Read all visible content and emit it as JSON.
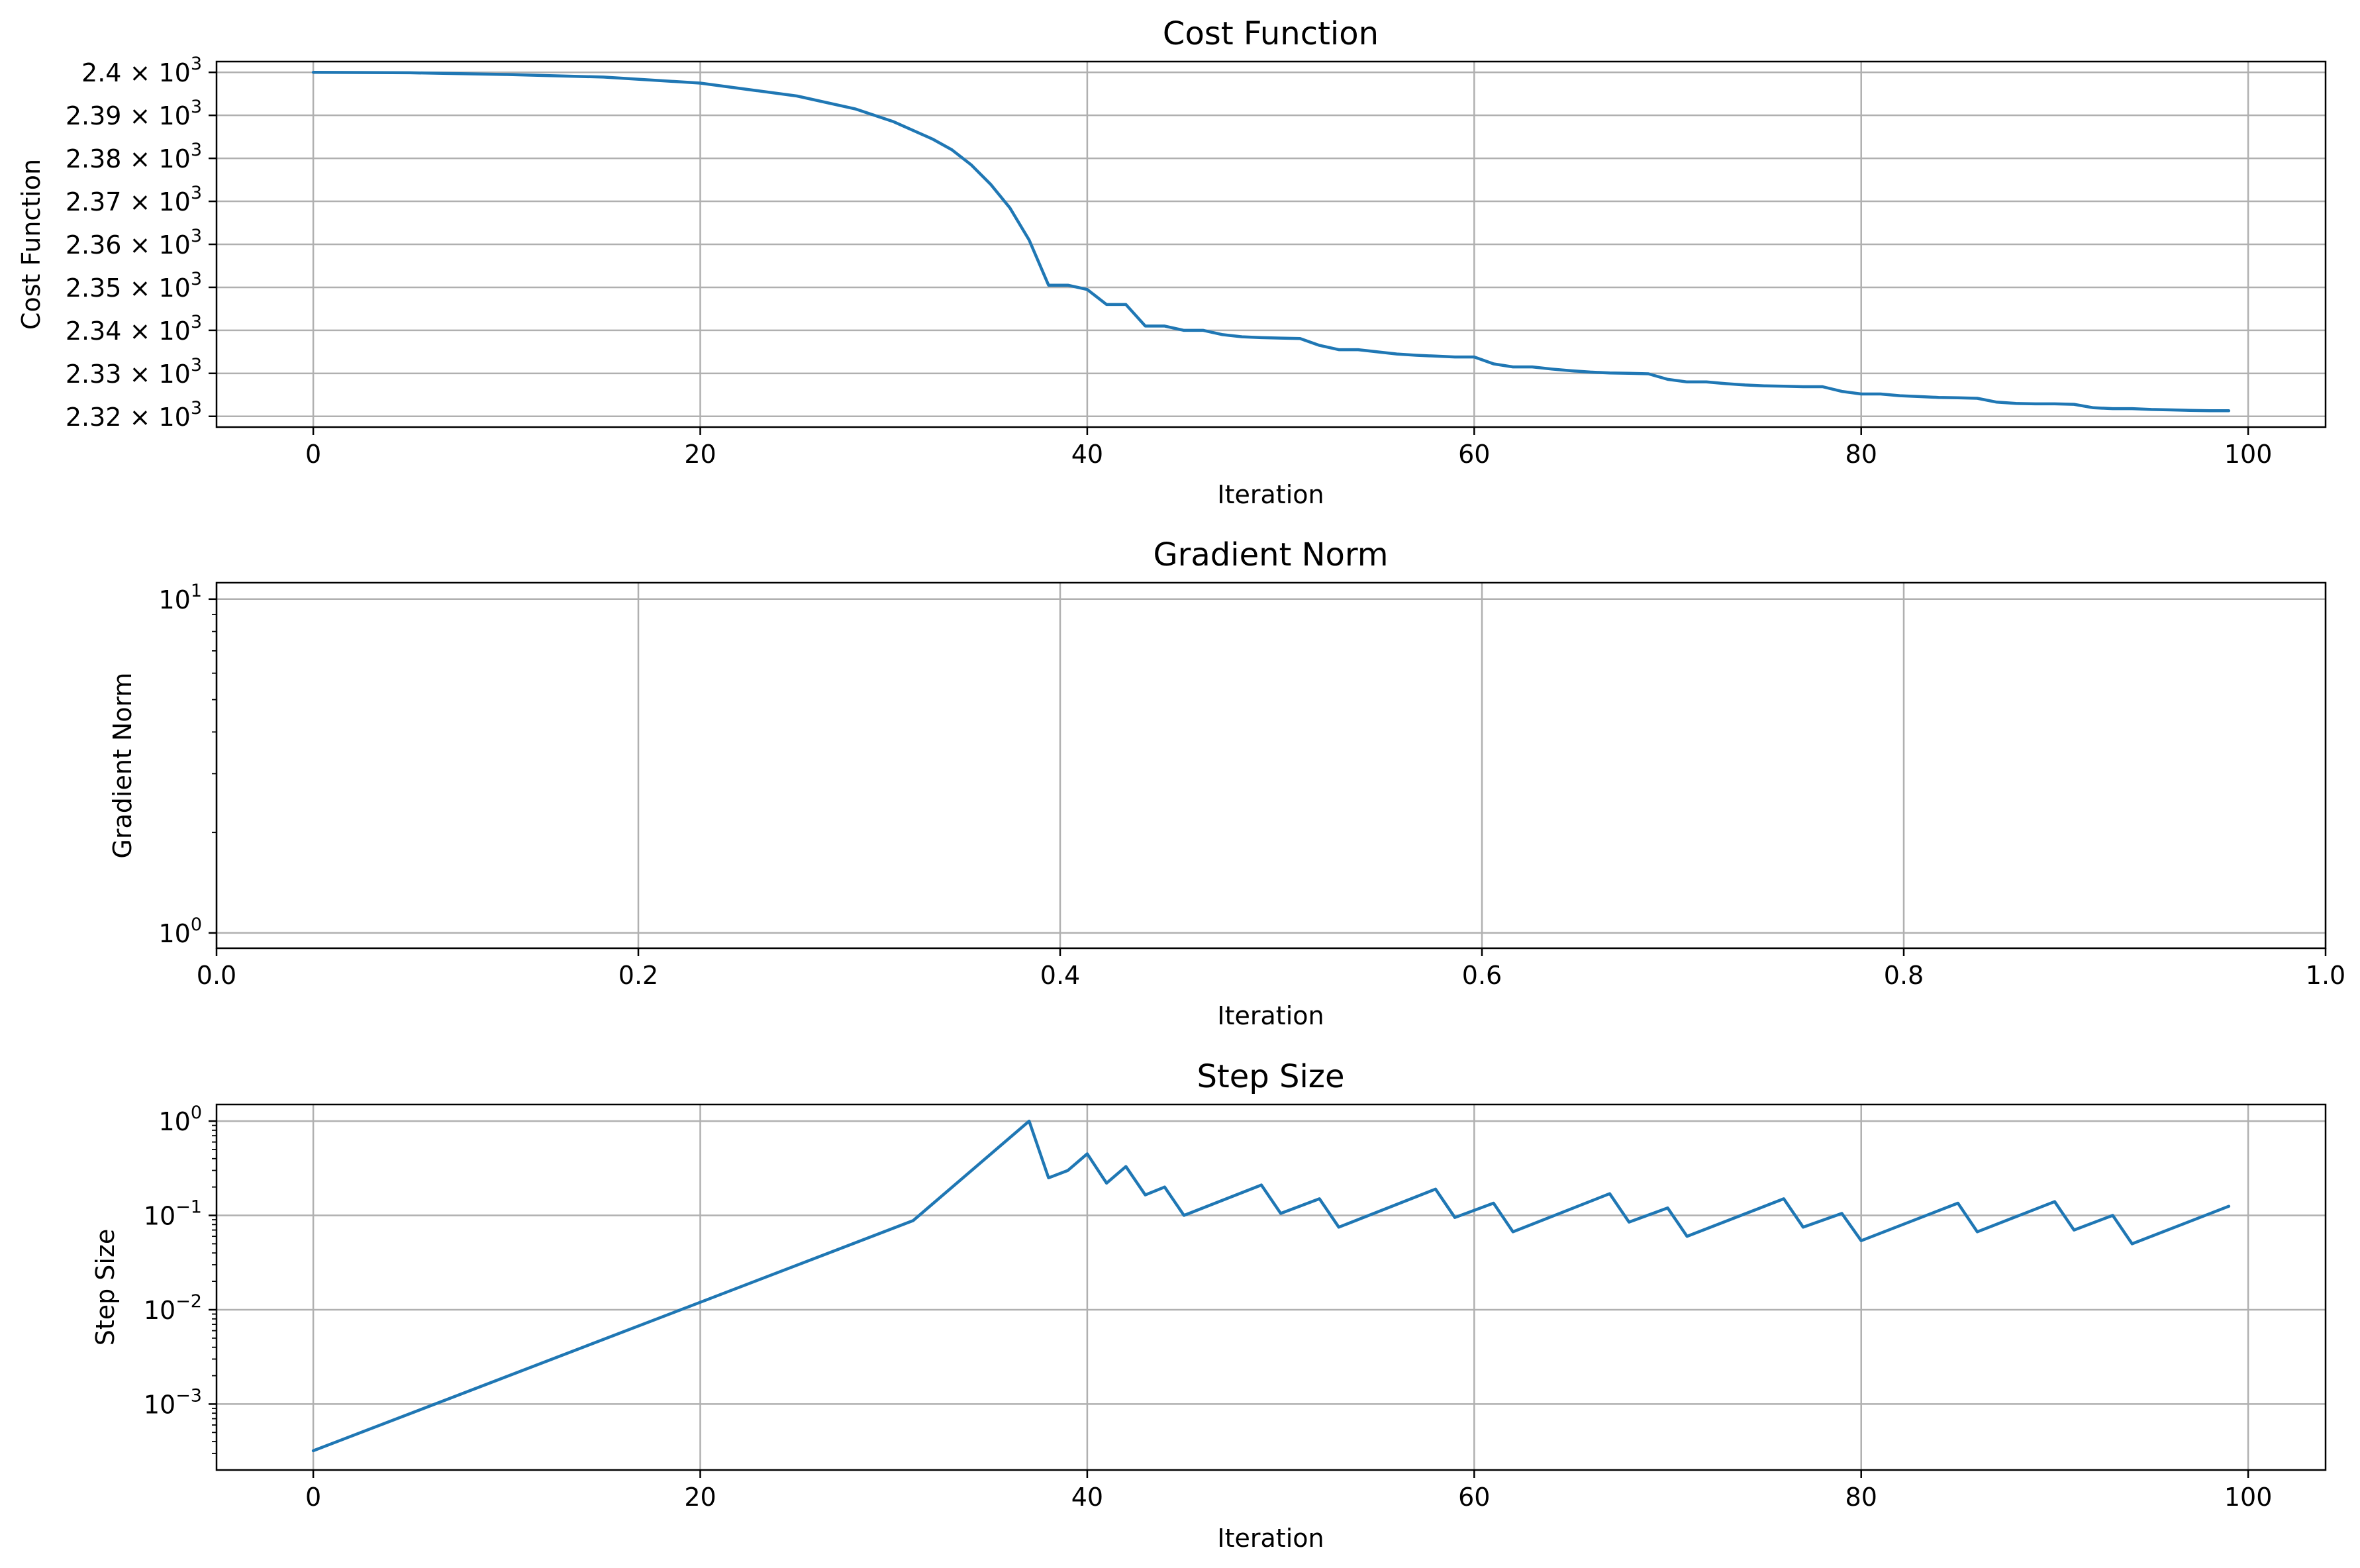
{
  "colors": {
    "series": "#1f77b4",
    "grid": "#b0b0b0"
  },
  "chart_data": [
    {
      "type": "line",
      "title": "Cost Function",
      "xlabel": "Iteration",
      "ylabel": "Cost Function",
      "xlim": [
        -5,
        104
      ],
      "ylim": [
        2317.5,
        2402.5
      ],
      "grid": true,
      "xticks": [
        0,
        20,
        40,
        60,
        80,
        100
      ],
      "xtick_labels": [
        "0",
        "20",
        "40",
        "60",
        "80",
        "100"
      ],
      "yticks": [
        2320,
        2330,
        2340,
        2350,
        2360,
        2370,
        2380,
        2390,
        2400
      ],
      "ytick_labels": [
        {
          "base": "2.32 × 10",
          "exp": "3"
        },
        {
          "base": "2.33 × 10",
          "exp": "3"
        },
        {
          "base": "2.34 × 10",
          "exp": "3"
        },
        {
          "base": "2.35 × 10",
          "exp": "3"
        },
        {
          "base": "2.36 × 10",
          "exp": "3"
        },
        {
          "base": "2.37 × 10",
          "exp": "3"
        },
        {
          "base": "2.38 × 10",
          "exp": "3"
        },
        {
          "base": "2.39 × 10",
          "exp": "3"
        },
        {
          "base": "2.4 × 10",
          "exp": "3"
        }
      ],
      "series": [
        {
          "x": [
            0,
            5,
            10,
            15,
            20,
            25,
            28,
            30,
            32,
            33,
            34,
            35,
            36,
            37,
            38,
            39,
            40,
            41,
            42,
            43,
            44,
            45,
            46,
            47,
            48,
            49,
            50,
            51,
            52,
            53,
            54,
            55,
            56,
            57,
            58,
            59,
            60,
            61,
            62,
            63,
            64,
            65,
            66,
            67,
            68,
            69,
            70,
            71,
            72,
            73,
            74,
            75,
            76,
            77,
            78,
            79,
            80,
            81,
            82,
            83,
            84,
            85,
            86,
            87,
            88,
            89,
            90,
            91,
            92,
            93,
            94,
            95,
            96,
            97,
            98,
            99
          ],
          "y": [
            2400,
            2399.9,
            2399.5,
            2398.9,
            2397.5,
            2394.5,
            2391.5,
            2388.5,
            2384.5,
            2382,
            2378.5,
            2374,
            2368.5,
            2361,
            2350.5,
            2350.5,
            2349.5,
            2346,
            2346,
            2341,
            2341,
            2340,
            2340,
            2339,
            2338.5,
            2338.3,
            2338.2,
            2338.1,
            2336.5,
            2335.5,
            2335.5,
            2335,
            2334.5,
            2334.2,
            2334,
            2333.8,
            2333.8,
            2332.2,
            2331.5,
            2331.5,
            2331,
            2330.6,
            2330.3,
            2330.1,
            2330,
            2329.9,
            2328.6,
            2328,
            2328,
            2327.6,
            2327.3,
            2327.1,
            2327,
            2326.9,
            2326.9,
            2325.8,
            2325.2,
            2325.2,
            2324.8,
            2324.6,
            2324.4,
            2324.3,
            2324.2,
            2323.3,
            2323,
            2322.9,
            2322.9,
            2322.8,
            2322,
            2321.8,
            2321.8,
            2321.6,
            2321.5,
            2321.4,
            2321.3,
            2321.3
          ]
        }
      ]
    },
    {
      "type": "line",
      "title": "Gradient Norm",
      "xlabel": "Iteration",
      "ylabel": "Gradient Norm",
      "xlim": [
        0,
        1
      ],
      "ylim": [
        0.9,
        11.2
      ],
      "yscale": "log",
      "grid": true,
      "xticks": [
        0,
        0.2,
        0.4,
        0.6,
        0.8,
        1.0
      ],
      "xtick_labels": [
        "0.0",
        "0.2",
        "0.4",
        "0.6",
        "0.8",
        "1.0"
      ],
      "yticks": [
        1,
        10
      ],
      "ytick_labels": [
        {
          "base": "10",
          "exp": "0"
        },
        {
          "base": "10",
          "exp": "1"
        }
      ],
      "series": []
    },
    {
      "type": "line",
      "title": "Step Size",
      "xlabel": "Iteration",
      "ylabel": "Step Size",
      "xlim": [
        -5,
        104
      ],
      "ylim": [
        0.0002,
        1.5
      ],
      "yscale": "log",
      "grid": true,
      "xticks": [
        0,
        20,
        40,
        60,
        80,
        100
      ],
      "xtick_labels": [
        "0",
        "20",
        "40",
        "60",
        "80",
        "100"
      ],
      "yticks": [
        0.001,
        0.01,
        0.1,
        1
      ],
      "ytick_labels": [
        {
          "base": "10",
          "exp": "−3"
        },
        {
          "base": "10",
          "exp": "−2"
        },
        {
          "base": "10",
          "exp": "−1"
        },
        {
          "base": "10",
          "exp": "0"
        }
      ],
      "series": [
        {
          "x": [
            0,
            31,
            37,
            38,
            39,
            40,
            41,
            42,
            43,
            44,
            45,
            49,
            50,
            52,
            53,
            58,
            59,
            61,
            62,
            67,
            68,
            70,
            71,
            76,
            77,
            79,
            80,
            85,
            86,
            90,
            91,
            93,
            94,
            99
          ],
          "y": [
            0.00032,
            0.088,
            1.0,
            0.25,
            0.3,
            0.45,
            0.22,
            0.33,
            0.165,
            0.2,
            0.1,
            0.21,
            0.105,
            0.15,
            0.075,
            0.19,
            0.095,
            0.135,
            0.067,
            0.17,
            0.085,
            0.12,
            0.06,
            0.15,
            0.075,
            0.105,
            0.054,
            0.135,
            0.067,
            0.14,
            0.07,
            0.1,
            0.05,
            0.125
          ]
        }
      ]
    }
  ]
}
